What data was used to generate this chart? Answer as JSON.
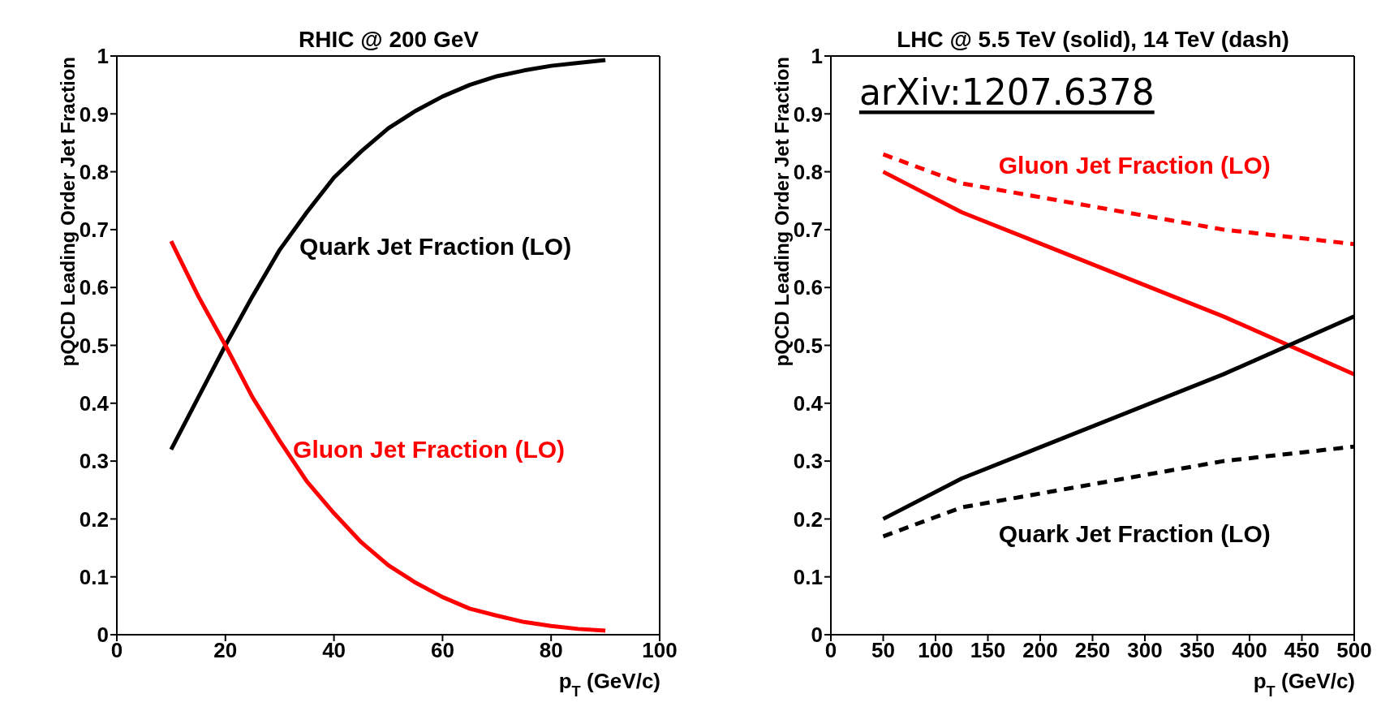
{
  "chart_data": [
    {
      "type": "line",
      "title": "RHIC @ 200 GeV",
      "xlabel": "p$_{T}$ (GeV/c)",
      "ylabel": "pQCD Leading Order Jet Fraction",
      "xlim": [
        0,
        100
      ],
      "xticks": [
        0,
        20,
        40,
        60,
        80,
        100
      ],
      "ylim": [
        0,
        1
      ],
      "yticks": [
        0,
        0.1,
        0.2,
        0.3,
        0.4,
        0.5,
        0.6,
        0.7,
        0.8,
        0.9,
        1
      ],
      "marker": "none",
      "line_style": "solid",
      "x": [
        10,
        15,
        20,
        25,
        30,
        35,
        40,
        45,
        50,
        55,
        60,
        65,
        70,
        75,
        80,
        85,
        90
      ],
      "series": [
        {
          "name": "Quark Jet Fraction (LO)",
          "color": "#000000",
          "values": [
            0.32,
            0.41,
            0.5,
            0.585,
            0.665,
            0.73,
            0.79,
            0.835,
            0.875,
            0.905,
            0.93,
            0.95,
            0.965,
            0.975,
            0.983,
            0.988,
            0.993
          ]
        },
        {
          "name": "Gluon Jet Fraction (LO)",
          "color": "#ff0000",
          "values": [
            0.68,
            0.585,
            0.5,
            0.41,
            0.335,
            0.265,
            0.21,
            0.16,
            0.12,
            0.09,
            0.065,
            0.045,
            0.033,
            0.022,
            0.015,
            0.01,
            0.007
          ]
        }
      ]
    },
    {
      "type": "line",
      "title": "LHC @ 5.5 TeV (solid), 14 TeV (dash)",
      "xlabel": "p$_{T}$ (GeV/c)",
      "ylabel": "pQCD Leading Order Jet Fraction",
      "xlim": [
        0,
        500
      ],
      "xticks": [
        0,
        50,
        100,
        150,
        200,
        250,
        300,
        350,
        400,
        450,
        500
      ],
      "ylim": [
        0,
        1
      ],
      "yticks": [
        0,
        0.1,
        0.2,
        0.3,
        0.4,
        0.5,
        0.6,
        0.7,
        0.8,
        0.9,
        1
      ],
      "marker": "none",
      "line_style": "solid",
      "annotations": [
        "arXiv:1207.6378"
      ],
      "x": [
        50,
        125,
        375,
        500
      ],
      "series": [
        {
          "name": "Gluon Jet Fraction (LO)",
          "color": "#ff0000",
          "values": [
            0.8,
            0.73,
            0.55,
            0.45
          ]
        },
        {
          "color": "#ff0000",
          "line_style": "dashed",
          "values": [
            0.83,
            0.78,
            0.7,
            0.675
          ]
        },
        {
          "name": "Quark Jet Fraction (LO)",
          "color": "#000000",
          "values": [
            0.2,
            0.27,
            0.45,
            0.55
          ]
        },
        {
          "color": "#000000",
          "line_style": "dashed",
          "values": [
            0.17,
            0.22,
            0.3,
            0.325
          ]
        }
      ]
    }
  ]
}
